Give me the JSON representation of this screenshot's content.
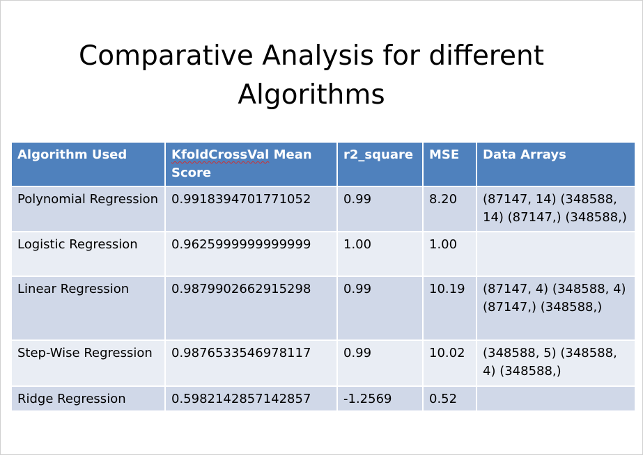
{
  "slide": {
    "title": "Comparative Analysis for different Algorithms"
  },
  "table": {
    "header_color": "#4f81bd",
    "row_color_odd": "#d0d8e8",
    "row_color_even": "#e9edf4",
    "columns": {
      "algorithm": "Algorithm Used",
      "kfold_word": "KfoldCrossVal",
      "kfold_rest": " Mean Score",
      "r2": "r2_square",
      "mse": "MSE",
      "arrays": "Data Arrays"
    },
    "rows": [
      {
        "algorithm": "Polynomial Regression",
        "kfold": "0.9918394701771052",
        "r2": "0.99",
        "mse": "8.20",
        "arrays": "(87147, 14) (348588, 14) (87147,) (348588,)"
      },
      {
        "algorithm": "Logistic Regression",
        "kfold": "0.9625999999999999",
        "r2": "1.00",
        "mse": "1.00",
        "arrays": ""
      },
      {
        "algorithm": "Linear Regression",
        "kfold": "0.9879902662915298",
        "r2": "0.99",
        "mse": "10.19",
        "arrays": "(87147, 4) (348588, 4) (87147,) (348588,)"
      },
      {
        "algorithm": "Step-Wise Regression",
        "kfold": "0.9876533546978117",
        "r2": "0.99",
        "mse": "10.02",
        "arrays": "(348588, 5) (348588, 4) (348588,)"
      },
      {
        "algorithm": "Ridge Regression",
        "kfold": "0.5982142857142857",
        "r2": "-1.2569",
        "mse": "0.52",
        "arrays": ""
      }
    ]
  }
}
